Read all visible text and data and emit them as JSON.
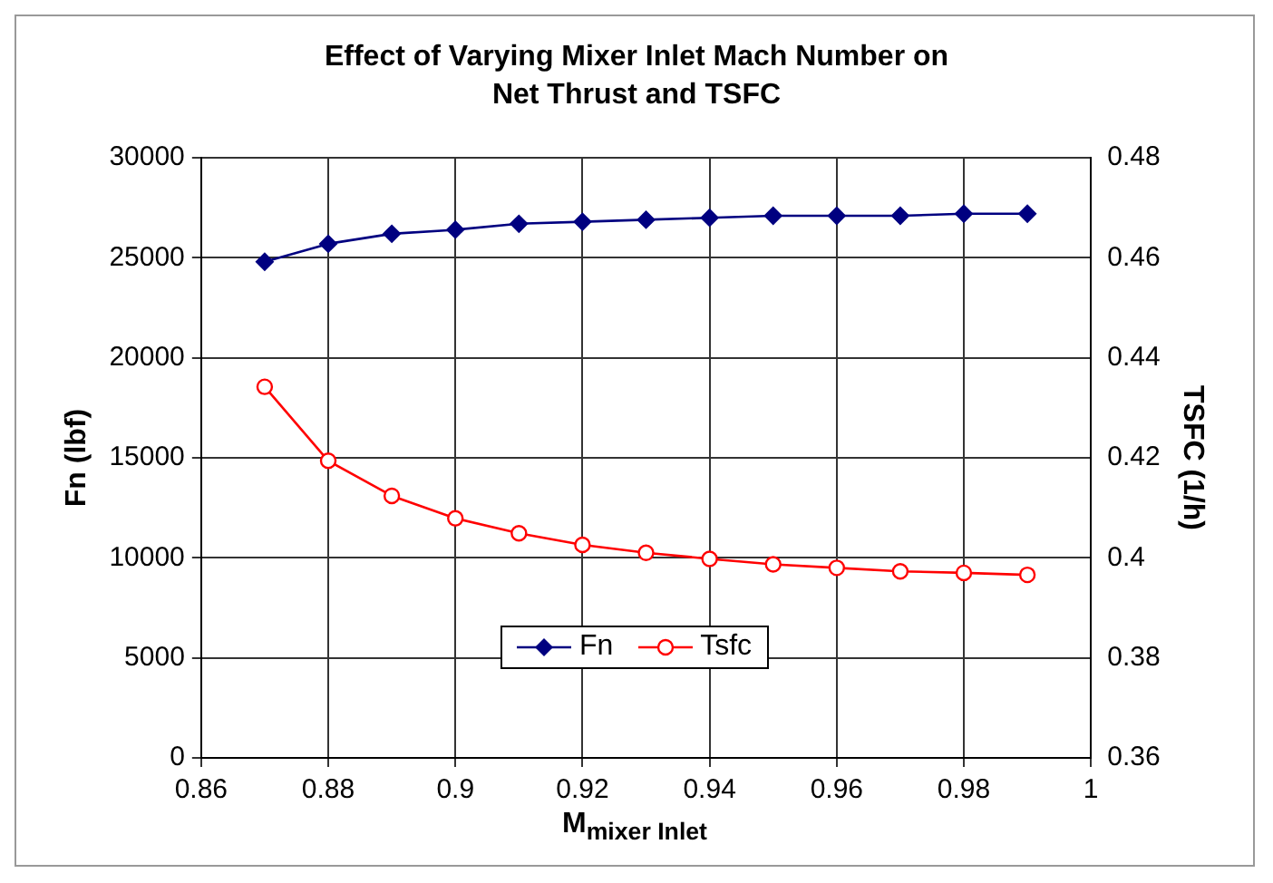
{
  "chart_data": {
    "type": "line",
    "title": "Effect of Varying Mixer Inlet Mach Number on Net Thrust and TSFC",
    "xlabel": "M$_{mixer Inlet}$",
    "ylabel": "Fn (lbf)",
    "y2label": "TSFC (1/h)",
    "x": [
      0.87,
      0.88,
      0.89,
      0.9,
      0.91,
      0.92,
      0.93,
      0.94,
      0.95,
      0.96,
      0.97,
      0.98,
      0.99
    ],
    "series": [
      {
        "name": "Fn",
        "color": "#000080",
        "marker": "diamond",
        "values": [
          24800,
          25700,
          26200,
          26400,
          26700,
          26800,
          26900,
          27000,
          27100,
          27100,
          27100,
          27200,
          27200
        ]
      },
      {
        "name": "Tsfc",
        "color": "#ff0000",
        "marker": "circle",
        "axis": "y2",
        "values": [
          0.4342,
          0.4194,
          0.4124,
          0.4079,
          0.4049,
          0.4026,
          0.401,
          0.3998,
          0.3987,
          0.398,
          0.3973,
          0.397,
          0.3966
        ]
      }
    ],
    "xlim": [
      0.86,
      1
    ],
    "xticks": [
      0.86,
      0.88,
      0.9,
      0.92,
      0.94,
      0.96,
      0.98,
      1
    ],
    "ylim": [
      0,
      30000
    ],
    "yticks": [
      0,
      5000,
      10000,
      15000,
      20000,
      25000,
      30000
    ],
    "y2lim": [
      0.36,
      0.48
    ],
    "y2ticks": [
      0.36,
      0.38,
      0.4,
      0.42,
      0.44,
      0.46,
      0.48
    ],
    "grid": true,
    "legend": "bottom",
    "line_style": "solid"
  }
}
